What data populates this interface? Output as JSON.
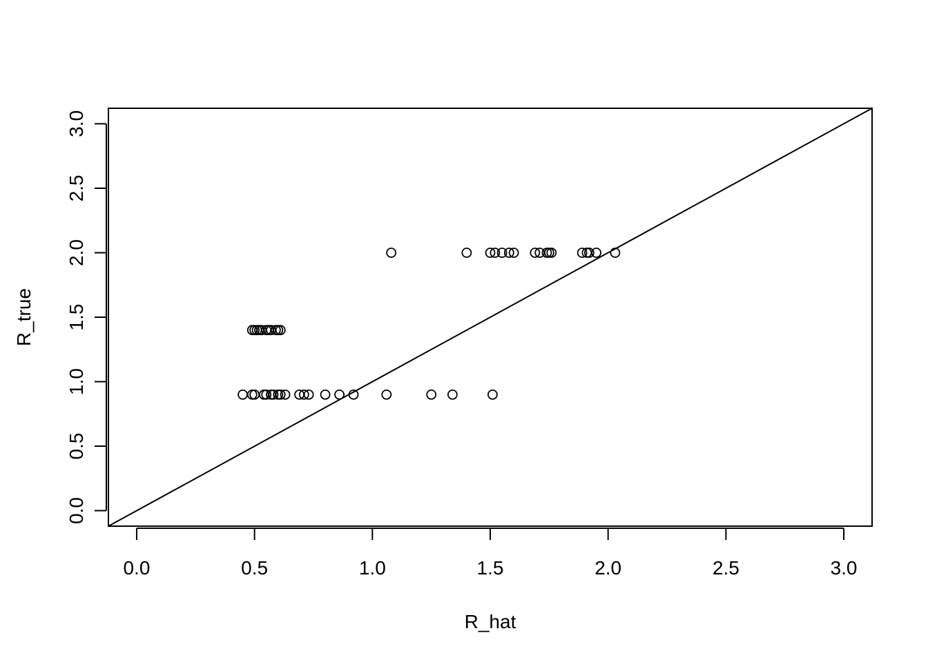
{
  "chart_data": {
    "type": "scatter",
    "title": "",
    "xlabel": "R_hat",
    "ylabel": "R_true",
    "xlim": [
      -0.12,
      3.12
    ],
    "ylim": [
      -0.12,
      3.12
    ],
    "grid": false,
    "x_ticks": [
      0.0,
      0.5,
      1.0,
      1.5,
      2.0,
      2.5,
      3.0
    ],
    "x_tick_labels": [
      "0.0",
      "0.5",
      "1.0",
      "1.5",
      "2.0",
      "2.5",
      "3.0"
    ],
    "y_ticks": [
      0.0,
      0.5,
      1.0,
      1.5,
      2.0,
      2.5,
      3.0
    ],
    "y_tick_labels": [
      "0.0",
      "0.5",
      "1.0",
      "1.5",
      "2.0",
      "2.5",
      "3.0"
    ],
    "reference_line": {
      "slope": 1,
      "intercept": 0
    },
    "series": [
      {
        "x": [
          1.08,
          1.4,
          1.5,
          1.52,
          1.55,
          1.58,
          1.6,
          1.69,
          1.71,
          1.74,
          1.75,
          1.76,
          1.89,
          1.91,
          1.92,
          1.95,
          2.03,
          0.49,
          0.5,
          0.51,
          0.52,
          0.53,
          0.55,
          0.56,
          0.57,
          0.59,
          0.6,
          0.61,
          0.45,
          0.49,
          0.5,
          0.54,
          0.55,
          0.57,
          0.58,
          0.6,
          0.61,
          0.63,
          0.69,
          0.71,
          0.73,
          0.8,
          0.86,
          0.92,
          1.06,
          1.25,
          1.34,
          1.51
        ],
        "y": [
          2.0,
          2.0,
          2.0,
          2.0,
          2.0,
          2.0,
          2.0,
          2.0,
          2.0,
          2.0,
          2.0,
          2.0,
          2.0,
          2.0,
          2.0,
          2.0,
          2.0,
          1.4,
          1.4,
          1.4,
          1.4,
          1.4,
          1.4,
          1.4,
          1.4,
          1.4,
          1.4,
          1.4,
          0.9,
          0.9,
          0.9,
          0.9,
          0.9,
          0.9,
          0.9,
          0.9,
          0.9,
          0.9,
          0.9,
          0.9,
          0.9,
          0.9,
          0.9,
          0.9,
          0.9,
          0.9,
          0.9,
          0.9
        ]
      }
    ]
  }
}
